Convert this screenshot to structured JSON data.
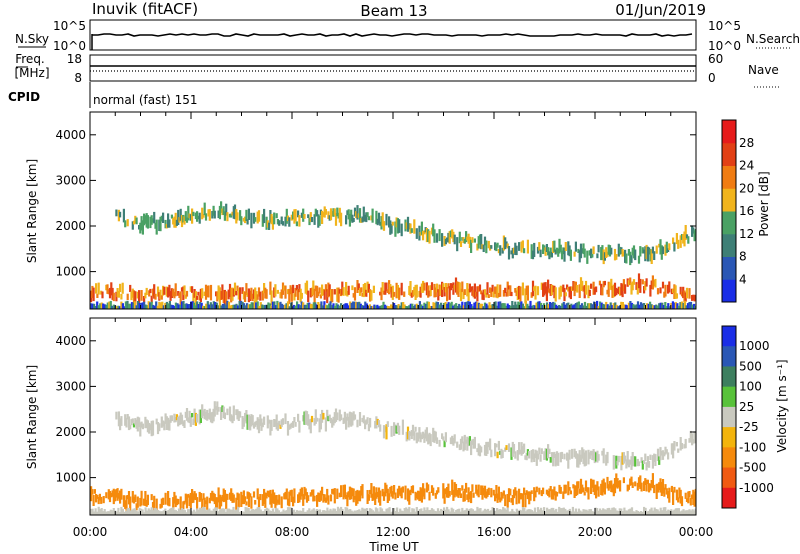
{
  "header": {
    "radar": "Inuvik (fitACF)",
    "beam": "Beam 13",
    "date": "01/Jun/2019"
  },
  "strips": {
    "nsky": {
      "left_label": "N.Sky",
      "right_label": "N.Search",
      "left_ticks": [
        "10^5",
        "10^0"
      ],
      "right_ticks": [
        "10^5",
        "10^0"
      ]
    },
    "freq": {
      "left_label_1": "Freq.",
      "left_label_2": "[MHz]",
      "right_label": "Nave",
      "left_ticks": [
        "18",
        "8"
      ],
      "right_ticks": [
        "60",
        "0"
      ]
    },
    "cpid": {
      "label": "CPID",
      "mode": "normal (fast) 151"
    }
  },
  "colors": {
    "power": [
      "#1a2ee6",
      "#2a57b5",
      "#3e7f76",
      "#4aa164",
      "#f1b41c",
      "#f07c12",
      "#e24015",
      "#e61b1b"
    ],
    "velocity": [
      "#e61b1b",
      "#f05a12",
      "#f58a0c",
      "#f3b40c",
      "#c9c9bf",
      "#58c23a",
      "#3d7f5f",
      "#2a57b5",
      "#1a2ee6"
    ]
  },
  "chart_data": [
    {
      "type": "heatmap",
      "title": "",
      "xlabel": "",
      "ylabel": "Slant Range [km]",
      "x_ticks": [
        "00:00",
        "04:00",
        "08:00",
        "12:00",
        "16:00",
        "20:00",
        "00:00"
      ],
      "y_ticks": [
        "1000",
        "2000",
        "3000",
        "4000"
      ],
      "xlim": [
        0,
        24
      ],
      "ylim": [
        180,
        4500
      ],
      "colorbar": {
        "label": "Power [dB]",
        "ticks": [
          "4",
          "8",
          "12",
          "16",
          "20",
          "24",
          "28"
        ],
        "range": [
          0,
          32
        ]
      },
      "bands": [
        {
          "name": "upper",
          "t": [
            1.0,
            2.0,
            3.0,
            4.0,
            5.0,
            6.0,
            7.0,
            8.0,
            9.0,
            10.0,
            11.0,
            12.0,
            13.0,
            14.0,
            15.0,
            16.0,
            17.0,
            18.0,
            19.0,
            20.0,
            21.0,
            22.0,
            23.0,
            24.0
          ],
          "range_km": [
            2200,
            2050,
            2100,
            2250,
            2350,
            2200,
            2100,
            2150,
            2200,
            2250,
            2150,
            2000,
            1900,
            1750,
            1650,
            1550,
            1500,
            1450,
            1450,
            1400,
            1400,
            1350,
            1600,
            1900
          ],
          "level_db": 14
        },
        {
          "name": "near",
          "t": [
            0.0,
            1.0,
            2.0,
            3.0,
            14.5,
            15.5,
            16.5,
            17.0,
            22.0,
            23.0,
            24.0
          ],
          "range_km": [
            550,
            550,
            500,
            500,
            600,
            550,
            600,
            550,
            700,
            550,
            480
          ],
          "level_db": 22
        }
      ]
    },
    {
      "type": "heatmap",
      "title": "",
      "xlabel": "Time UT",
      "ylabel": "Slant Range [km]",
      "x_ticks": [
        "00:00",
        "04:00",
        "08:00",
        "12:00",
        "16:00",
        "20:00",
        "00:00"
      ],
      "y_ticks": [
        "1000",
        "2000",
        "3000",
        "4000"
      ],
      "xlim": [
        0,
        24
      ],
      "ylim": [
        180,
        4500
      ],
      "colorbar": {
        "label": "Velocity [m s⁻¹]",
        "ticks": [
          "1000",
          "500",
          "100",
          "25",
          "-25",
          "-100",
          "-500",
          "-1000"
        ]
      },
      "bands": [
        {
          "name": "upper",
          "t": [
            1.0,
            2.0,
            3.0,
            4.0,
            5.0,
            6.0,
            7.0,
            8.0,
            9.0,
            10.0,
            11.0,
            12.0,
            13.0,
            14.0,
            15.0,
            16.0,
            17.0,
            18.0,
            19.0,
            20.0,
            21.0,
            22.0,
            23.0,
            24.0
          ],
          "range_km": [
            2300,
            2150,
            2200,
            2300,
            2450,
            2300,
            2150,
            2200,
            2250,
            2300,
            2200,
            2050,
            1950,
            1800,
            1700,
            1600,
            1550,
            1500,
            1450,
            1450,
            1400,
            1350,
            1600,
            1900
          ],
          "velocity_ms": 0
        },
        {
          "name": "near",
          "t": [
            0.0,
            1.0,
            2.0,
            3.0,
            14.5,
            15.5,
            16.5,
            17.0,
            22.0,
            23.0,
            24.0
          ],
          "range_km": [
            600,
            550,
            450,
            480,
            700,
            650,
            600,
            600,
            900,
            650,
            500
          ],
          "velocity_ms": -300
        }
      ]
    }
  ]
}
